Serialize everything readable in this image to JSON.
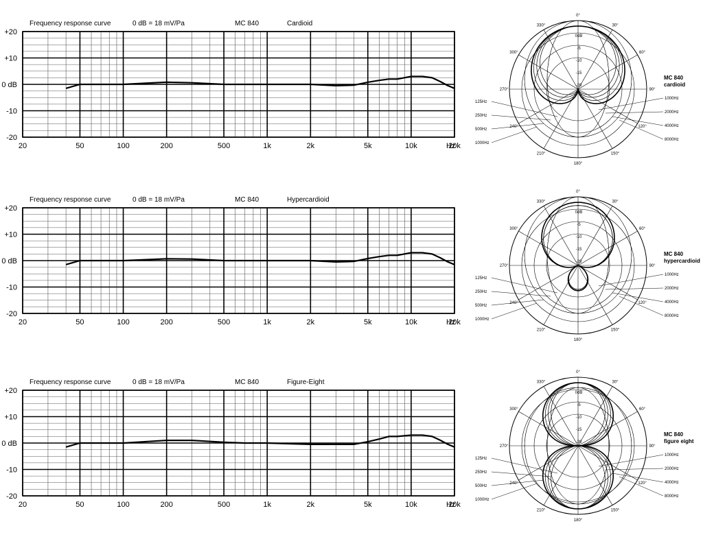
{
  "chart_data": [
    {
      "type": "line",
      "title": "Frequency response curve",
      "reference": "0 dB = 18 mV/Pa",
      "model": "MC 840",
      "pattern": "Cardioid",
      "x_unit": "Hz",
      "x_scale": "log",
      "xlim": [
        20,
        20000
      ],
      "ylim": [
        -20,
        20
      ],
      "x_ticks": [
        {
          "value": 20,
          "label": "20"
        },
        {
          "value": 50,
          "label": "50"
        },
        {
          "value": 100,
          "label": "100"
        },
        {
          "value": 200,
          "label": "200"
        },
        {
          "value": 500,
          "label": "500"
        },
        {
          "value": 1000,
          "label": "1k"
        },
        {
          "value": 2000,
          "label": "2k"
        },
        {
          "value": 5000,
          "label": "5k"
        },
        {
          "value": 10000,
          "label": "10k"
        },
        {
          "value": 20000,
          "label": "20k"
        }
      ],
      "y_ticks": [
        {
          "value": 20,
          "label": "+20"
        },
        {
          "value": 10,
          "label": "+10"
        },
        {
          "value": 0,
          "label": "0 dB"
        },
        {
          "value": -10,
          "label": "-10"
        },
        {
          "value": -20,
          "label": "-20"
        }
      ],
      "grid": true,
      "series": [
        {
          "x": [
            40,
            50,
            70,
            100,
            150,
            200,
            300,
            500,
            700,
            1000,
            1500,
            2000,
            3000,
            4000,
            5000,
            6000,
            7000,
            8000,
            10000,
            12000,
            14000,
            16000,
            18000,
            20000
          ],
          "y": [
            -1.5,
            0,
            0,
            0,
            0.5,
            0.8,
            0.6,
            0,
            0,
            0,
            0,
            0,
            -0.5,
            -0.3,
            0.8,
            1.5,
            2,
            2,
            3,
            3,
            2.5,
            1,
            -0.5,
            -1.5
          ]
        }
      ]
    },
    {
      "type": "line",
      "title": "Frequency response curve",
      "reference": "0 dB = 18 mV/Pa",
      "model": "MC 840",
      "pattern": "Hypercardioid",
      "x_unit": "Hz",
      "x_scale": "log",
      "xlim": [
        20,
        20000
      ],
      "ylim": [
        -20,
        20
      ],
      "x_ticks": [
        {
          "value": 20,
          "label": "20"
        },
        {
          "value": 50,
          "label": "50"
        },
        {
          "value": 100,
          "label": "100"
        },
        {
          "value": 200,
          "label": "200"
        },
        {
          "value": 500,
          "label": "500"
        },
        {
          "value": 1000,
          "label": "1k"
        },
        {
          "value": 2000,
          "label": "2k"
        },
        {
          "value": 5000,
          "label": "5k"
        },
        {
          "value": 10000,
          "label": "10k"
        },
        {
          "value": 20000,
          "label": "20k"
        }
      ],
      "y_ticks": [
        {
          "value": 20,
          "label": "+20"
        },
        {
          "value": 10,
          "label": "+10"
        },
        {
          "value": 0,
          "label": "0 dB"
        },
        {
          "value": -10,
          "label": "-10"
        },
        {
          "value": -20,
          "label": "-20"
        }
      ],
      "grid": true,
      "series": [
        {
          "x": [
            40,
            50,
            70,
            100,
            150,
            200,
            300,
            500,
            700,
            1000,
            1500,
            2000,
            3000,
            4000,
            5000,
            6000,
            7000,
            8000,
            10000,
            12000,
            14000,
            16000,
            18000,
            20000
          ],
          "y": [
            -1.5,
            0,
            0,
            0,
            0.4,
            0.7,
            0.6,
            0,
            0,
            0,
            0,
            0,
            -0.5,
            -0.3,
            0.8,
            1.5,
            2,
            2,
            3,
            3,
            2.5,
            1,
            -0.5,
            -1.5
          ]
        }
      ]
    },
    {
      "type": "line",
      "title": "Frequency response curve",
      "reference": "0 dB = 18 mV/Pa",
      "model": "MC 840",
      "pattern": "Figure-Eight",
      "x_unit": "Hz",
      "x_scale": "log",
      "xlim": [
        20,
        20000
      ],
      "ylim": [
        -20,
        20
      ],
      "x_ticks": [
        {
          "value": 20,
          "label": "20"
        },
        {
          "value": 50,
          "label": "50"
        },
        {
          "value": 100,
          "label": "100"
        },
        {
          "value": 200,
          "label": "200"
        },
        {
          "value": 500,
          "label": "500"
        },
        {
          "value": 1000,
          "label": "1k"
        },
        {
          "value": 2000,
          "label": "2k"
        },
        {
          "value": 5000,
          "label": "5k"
        },
        {
          "value": 10000,
          "label": "10k"
        },
        {
          "value": 20000,
          "label": "20k"
        }
      ],
      "y_ticks": [
        {
          "value": 20,
          "label": "+20"
        },
        {
          "value": 10,
          "label": "+10"
        },
        {
          "value": 0,
          "label": "0 dB"
        },
        {
          "value": -10,
          "label": "-10"
        },
        {
          "value": -20,
          "label": "-20"
        }
      ],
      "grid": true,
      "series": [
        {
          "x": [
            40,
            50,
            70,
            100,
            150,
            200,
            300,
            500,
            700,
            1000,
            1500,
            2000,
            3000,
            4000,
            5000,
            6000,
            7000,
            8000,
            10000,
            12000,
            14000,
            16000,
            18000,
            20000
          ],
          "y": [
            -1.5,
            0,
            0,
            0,
            0.6,
            1,
            1,
            0.3,
            0,
            0,
            -0.3,
            -0.5,
            -0.5,
            -0.5,
            0.5,
            1.5,
            2.5,
            2.5,
            3,
            3,
            2.5,
            1,
            -0.5,
            -1.5
          ]
        }
      ]
    }
  ],
  "polar_plots": [
    {
      "pattern": "cardioid",
      "model": "MC 840",
      "pattern_label": "cardioid",
      "angle_labels": [
        "0°",
        "30°",
        "60°",
        "90°",
        "120°",
        "150°",
        "180°",
        "210°",
        "240°",
        "270°",
        "300°",
        "330°"
      ],
      "db_labels": [
        "0dB",
        "-5",
        "-10",
        "-15",
        "-20"
      ],
      "freq_labels_left": [
        "125Hz",
        "250Hz",
        "500Hz",
        "1000Hz"
      ],
      "freq_labels_right": [
        "1000Hz",
        "2000Hz",
        "4000Hz",
        "8000Hz"
      ]
    },
    {
      "pattern": "hypercardioid",
      "model": "MC 840",
      "pattern_label": "hypercardioid",
      "angle_labels": [
        "0°",
        "30°",
        "60°",
        "90°",
        "120°",
        "150°",
        "180°",
        "210°",
        "240°",
        "270°",
        "300°",
        "330°"
      ],
      "db_labels": [
        "0dB",
        "-5",
        "-10",
        "-15",
        "-20"
      ],
      "freq_labels_left": [
        "125Hz",
        "250Hz",
        "500Hz",
        "1000Hz"
      ],
      "freq_labels_right": [
        "1000Hz",
        "2000Hz",
        "4000Hz",
        "8000Hz"
      ]
    },
    {
      "pattern": "figure-eight",
      "model": "MC 840",
      "pattern_label": "figure eight",
      "angle_labels": [
        "0°",
        "30°",
        "60°",
        "90°",
        "120°",
        "150°",
        "180°",
        "210°",
        "240°",
        "270°",
        "300°",
        "330°"
      ],
      "db_labels": [
        "0dB",
        "-5",
        "-10",
        "-15",
        "-20"
      ],
      "freq_labels_left": [
        "125Hz",
        "250Hz",
        "500Hz",
        "1000Hz"
      ],
      "freq_labels_right": [
        "1000Hz",
        "2000Hz",
        "4000Hz",
        "8000Hz"
      ]
    }
  ]
}
